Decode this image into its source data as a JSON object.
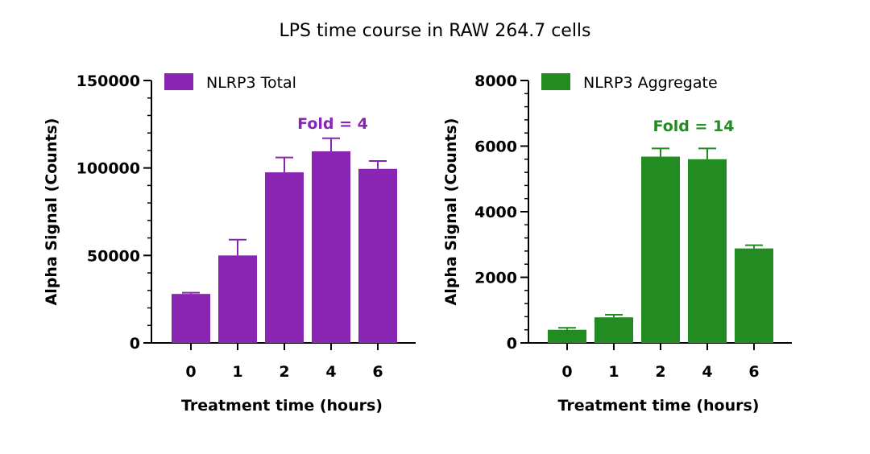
{
  "figure_title": "LPS time course in RAW 264.7 cells",
  "chart_data": [
    {
      "type": "bar",
      "categories": [
        "0",
        "1",
        "2",
        "4",
        "6"
      ],
      "series": [
        {
          "name": "NLRP3 Total",
          "values": [
            28000,
            50000,
            97500,
            109500,
            99500
          ],
          "errors": [
            700,
            9000,
            8500,
            7500,
            4500
          ]
        }
      ],
      "xlabel": "Treatment time (hours)",
      "ylabel": "Alpha Signal (Counts)",
      "ylim": [
        0,
        150000
      ],
      "yticks": [
        "0",
        "50000",
        "100000",
        "150000"
      ],
      "yticks_values": [
        0,
        50000,
        100000,
        150000
      ],
      "annotation": "Fold = 4",
      "color": "#8a24b3",
      "legend_position": "top-left",
      "grid": false
    },
    {
      "type": "bar",
      "categories": [
        "0",
        "1",
        "2",
        "4",
        "6"
      ],
      "series": [
        {
          "name": "NLRP3 Aggregate",
          "values": [
            400,
            780,
            5680,
            5600,
            2880
          ],
          "errors": [
            60,
            80,
            250,
            330,
            100
          ]
        }
      ],
      "xlabel": "Treatment time (hours)",
      "ylabel": "Alpha Signal (Counts)",
      "ylim": [
        0,
        8000
      ],
      "yticks": [
        "0",
        "2000",
        "4000",
        "6000",
        "8000"
      ],
      "yticks_values": [
        0,
        2000,
        4000,
        6000,
        8000
      ],
      "annotation": "Fold = 14",
      "color": "#228b22",
      "legend_position": "top-left",
      "grid": false
    }
  ]
}
